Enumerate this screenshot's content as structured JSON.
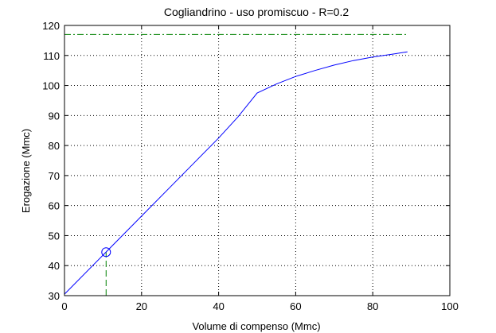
{
  "chart_data": {
    "type": "line",
    "title": "Cogliandrino  -  uso promiscuo  -   R=0.2",
    "xlabel": "Volume di compenso (Mmc)",
    "ylabel": "Erogazione (Mmc)",
    "xlim": [
      0,
      100
    ],
    "ylim": [
      30,
      120
    ],
    "xticks": [
      0,
      20,
      40,
      60,
      80,
      100
    ],
    "yticks": [
      30,
      40,
      50,
      60,
      70,
      80,
      90,
      100,
      110,
      120
    ],
    "grid": true,
    "series": [
      {
        "color": "#0000ff",
        "style": "solid",
        "x": [
          0,
          10,
          20,
          30,
          40,
          45,
          50,
          55,
          60,
          65,
          70,
          75,
          80,
          85,
          89
        ],
        "y": [
          30.5,
          43.5,
          56.5,
          69.5,
          82.5,
          89.5,
          97.5,
          100.5,
          103,
          105,
          106.8,
          108.3,
          109.5,
          110.4,
          111.2
        ]
      }
    ],
    "reference_lines": [
      {
        "orientation": "horizontal",
        "y": 117,
        "x_range": [
          0,
          89
        ],
        "color": "#008000",
        "style": "dash-dot"
      },
      {
        "orientation": "vertical",
        "x": 10.8,
        "y_range": [
          30,
          44.5
        ],
        "color": "#008000",
        "style": "dashed"
      }
    ],
    "marker": {
      "x": 10.8,
      "y": 44.5,
      "shape": "circle",
      "color": "#0000ff"
    }
  }
}
